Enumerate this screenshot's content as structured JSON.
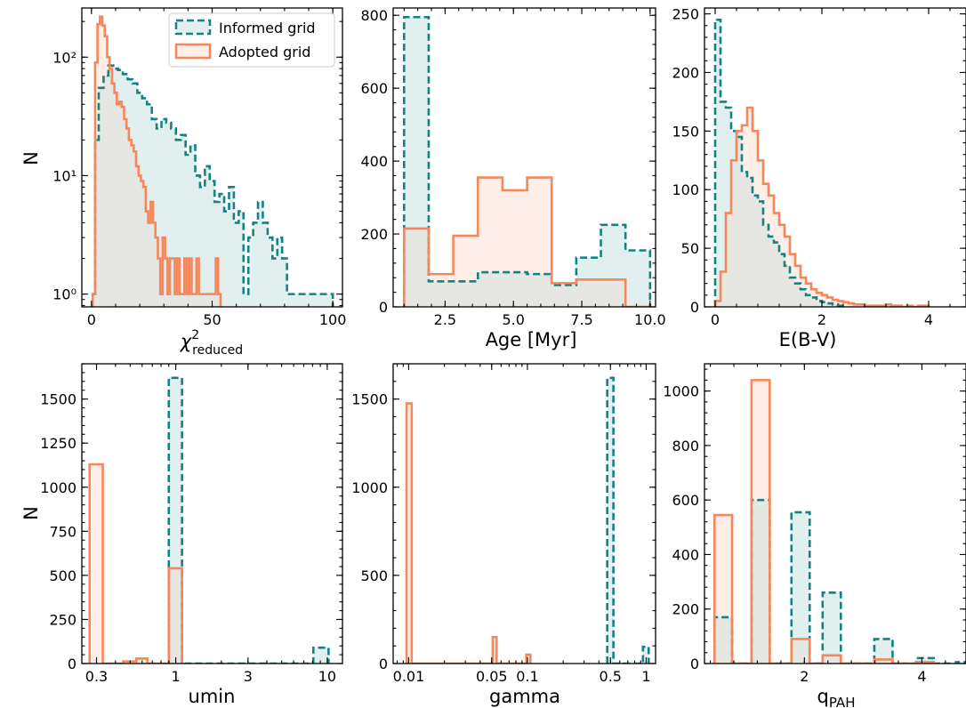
{
  "figure": {
    "legend": [
      {
        "name": "Informed grid",
        "color": "#138381",
        "dash": "dashed"
      },
      {
        "name": "Adopted grid",
        "color": "#f6875a",
        "dash": "solid"
      }
    ]
  },
  "colors": {
    "informed_line": "#138381",
    "informed_fill": "#e1f0ef",
    "adopted_line": "#f6875a",
    "adopted_fill": "#fdeee8",
    "overlap_fill": "#e6e6e2"
  },
  "chart_data": [
    {
      "type": "histogram",
      "panel": "chi2",
      "xlabel_main": "χ",
      "xlabel_sup": "2",
      "xlabel_sub": "reduced",
      "ylabel": "N",
      "yscale": "log",
      "xlim": [
        -4,
        104
      ],
      "ylim": [
        0.78,
        260
      ],
      "xticks": [
        0,
        50,
        100
      ],
      "xtick_labels": [
        "0",
        "50",
        "100"
      ],
      "yticks": [
        1,
        10,
        100
      ],
      "ytick_labels": [
        "10⁰",
        "10¹",
        "10²"
      ],
      "legend_position": "top-right",
      "series": [
        {
          "name": "Informed grid",
          "edges": [
            0.5,
            1.5,
            3,
            5,
            7,
            9,
            11,
            13,
            15,
            17,
            19,
            21,
            23,
            25,
            27,
            29,
            31,
            33,
            35,
            37,
            39,
            41,
            43,
            45,
            47,
            49,
            51,
            53,
            55,
            57,
            59,
            61,
            63,
            65,
            67,
            69,
            71,
            73,
            75,
            77,
            79,
            81,
            83,
            85,
            87,
            89,
            91,
            93,
            95,
            97,
            99,
            100
          ],
          "counts": [
            1,
            20,
            55,
            70,
            85,
            80,
            78,
            72,
            65,
            60,
            50,
            45,
            40,
            30,
            25,
            30,
            28,
            25,
            20,
            22,
            15,
            18,
            10,
            8,
            12,
            9,
            6,
            7,
            5,
            8,
            4,
            5,
            1,
            3,
            4,
            6,
            4,
            3,
            2,
            3,
            2,
            1,
            1,
            1,
            1,
            1,
            1,
            1,
            1,
            1,
            1
          ]
        },
        {
          "name": "Adopted grid",
          "edges": [
            0.5,
            1.5,
            2.5,
            3.5,
            4.5,
            5.5,
            6.5,
            7.5,
            8.5,
            9.5,
            10.5,
            11.5,
            12.5,
            13.5,
            14.5,
            15.5,
            16.5,
            17.5,
            18.5,
            19.5,
            20.5,
            21.5,
            22.5,
            23.5,
            24.5,
            25.5,
            26.5,
            27.5,
            28.5,
            29.5,
            30.5,
            31.5,
            32.5,
            33.5,
            34.5,
            35.5,
            36.5,
            37.5,
            38.5,
            39.5,
            40.5,
            41.5,
            42.5,
            43.5,
            44.5,
            45.5,
            46.5,
            47.5,
            48.5,
            49.5,
            50.5,
            51.5,
            52.5,
            53.5
          ],
          "counts": [
            1,
            90,
            190,
            220,
            185,
            150,
            100,
            80,
            60,
            50,
            40,
            42,
            38,
            30,
            25,
            20,
            18,
            16,
            12,
            10,
            9,
            8,
            5,
            4,
            6,
            4,
            3,
            2,
            1,
            3,
            2,
            1,
            2,
            2,
            1,
            2,
            1,
            1,
            2,
            1,
            2,
            1,
            1,
            2,
            1,
            1,
            1,
            1,
            1,
            1,
            1,
            2,
            1
          ]
        }
      ]
    },
    {
      "type": "histogram",
      "panel": "age",
      "xlabel": "Age [Myr]",
      "ylabel": "",
      "xlim": [
        0.6,
        10.2
      ],
      "ylim": [
        0,
        820
      ],
      "xticks": [
        2.5,
        5.0,
        7.5,
        10.0
      ],
      "xtick_labels": [
        "2.5",
        "5.0",
        "7.5",
        "10.0"
      ],
      "yticks": [
        0,
        200,
        400,
        600,
        800
      ],
      "ytick_labels": [
        "0",
        "200",
        "400",
        "600",
        "800"
      ],
      "series": [
        {
          "name": "Informed grid",
          "edges": [
            1.0,
            1.9,
            2.8,
            3.7,
            4.6,
            5.5,
            6.4,
            7.3,
            8.2,
            9.1,
            10.0
          ],
          "counts": [
            795,
            70,
            70,
            95,
            95,
            90,
            60,
            135,
            225,
            155
          ]
        },
        {
          "name": "Adopted grid",
          "edges": [
            1.0,
            1.9,
            2.8,
            3.7,
            4.6,
            5.5,
            6.4,
            7.3,
            8.2,
            9.1,
            10.0
          ],
          "counts": [
            215,
            90,
            195,
            355,
            320,
            355,
            65,
            75,
            75,
            0
          ]
        }
      ]
    },
    {
      "type": "histogram",
      "panel": "ebv",
      "xlabel": "E(B-V)",
      "ylabel": "",
      "xlim": [
        -0.2,
        4.7
      ],
      "ylim": [
        0,
        255
      ],
      "xticks": [
        0,
        2,
        4
      ],
      "xtick_labels": [
        "0",
        "2",
        "4"
      ],
      "yticks": [
        0,
        50,
        100,
        150,
        200,
        250
      ],
      "ytick_labels": [
        "0",
        "50",
        "100",
        "150",
        "200",
        "250"
      ],
      "series": [
        {
          "name": "Informed grid",
          "edges": [
            0.0,
            0.1,
            0.2,
            0.3,
            0.4,
            0.5,
            0.6,
            0.7,
            0.8,
            0.9,
            1.0,
            1.1,
            1.2,
            1.3,
            1.4,
            1.5,
            1.6,
            1.7,
            1.8,
            1.9,
            2.0,
            2.1,
            2.2,
            2.3,
            2.4
          ],
          "counts": [
            245,
            175,
            170,
            150,
            145,
            115,
            110,
            95,
            90,
            70,
            60,
            55,
            45,
            35,
            25,
            20,
            15,
            10,
            8,
            5,
            4,
            3,
            2,
            1
          ]
        },
        {
          "name": "Adopted grid",
          "edges": [
            0.0,
            0.1,
            0.2,
            0.3,
            0.4,
            0.5,
            0.6,
            0.7,
            0.8,
            0.9,
            1.0,
            1.1,
            1.2,
            1.3,
            1.4,
            1.5,
            1.6,
            1.7,
            1.8,
            1.9,
            2.0,
            2.1,
            2.2,
            2.3,
            2.4,
            2.5,
            2.6,
            2.7,
            2.8,
            2.9,
            3.0,
            3.1,
            3.2,
            3.3,
            3.4,
            3.5,
            3.6,
            3.7,
            3.8,
            3.9,
            4.0
          ],
          "counts": [
            5,
            30,
            80,
            125,
            150,
            155,
            170,
            150,
            125,
            105,
            95,
            80,
            70,
            60,
            45,
            35,
            25,
            20,
            15,
            12,
            10,
            8,
            6,
            5,
            4,
            3,
            2,
            2,
            1,
            1,
            1,
            1,
            2,
            1,
            1,
            0,
            1,
            0,
            1,
            1
          ]
        }
      ]
    },
    {
      "type": "histogram",
      "panel": "umin",
      "xlabel": "umin",
      "ylabel": "N",
      "xscale": "log",
      "xlim": [
        0.24,
        12.6
      ],
      "ylim": [
        0,
        1700
      ],
      "xticks": [
        0.3,
        1,
        3,
        10
      ],
      "xtick_labels": [
        "0.3",
        "1",
        "3",
        "10"
      ],
      "yticks": [
        0,
        250,
        500,
        750,
        1000,
        1250,
        1500
      ],
      "ytick_labels": [
        "0",
        "250",
        "500",
        "750",
        "1000",
        "1250",
        "1500"
      ],
      "series": [
        {
          "name": "Informed grid",
          "edges": [
            0.9,
            1.1,
            8.1,
            10.2
          ],
          "counts": [
            1620,
            0,
            90
          ]
        },
        {
          "name": "Adopted grid",
          "edges": [
            0.27,
            0.33,
            0.45,
            0.55,
            0.65,
            0.9,
            1.1
          ],
          "counts": [
            1130,
            0,
            12,
            28,
            0,
            540
          ]
        }
      ]
    },
    {
      "type": "histogram",
      "panel": "gamma",
      "xlabel": "gamma",
      "ylabel": "",
      "xscale": "log",
      "xlim": [
        0.0074,
        1.2
      ],
      "ylim": [
        0,
        1700
      ],
      "xticks": [
        0.01,
        0.05,
        0.1,
        0.5,
        1
      ],
      "xtick_labels": [
        "0.01",
        "0.05",
        "0.1",
        "0.5",
        "1"
      ],
      "yticks": [
        0,
        500,
        1000,
        1500
      ],
      "ytick_labels": [
        "0",
        "500",
        "1000",
        "1500"
      ],
      "series": [
        {
          "name": "Informed grid",
          "edges": [
            0.47,
            0.53,
            0.94,
            1.05
          ],
          "counts": [
            1620,
            0,
            95
          ]
        },
        {
          "name": "Adopted grid",
          "edges": [
            0.0096,
            0.0106,
            0.051,
            0.055,
            0.098,
            0.106
          ],
          "counts": [
            1475,
            0,
            150,
            0,
            50
          ]
        }
      ]
    },
    {
      "type": "histogram",
      "panel": "qpah",
      "xlabel_main": "q",
      "xlabel_sub": "PAH",
      "ylabel": "",
      "xlim": [
        0.3,
        4.75
      ],
      "ylim": [
        0,
        1100
      ],
      "xticks": [
        2,
        4
      ],
      "xtick_labels": [
        "2",
        "4"
      ],
      "yticks": [
        0,
        200,
        400,
        600,
        800,
        1000
      ],
      "ytick_labels": [
        "0",
        "200",
        "400",
        "600",
        "800",
        "1000"
      ],
      "series": [
        {
          "name": "Informed grid",
          "edges": [
            0.47,
            0.77,
            1.1,
            1.41,
            1.78,
            2.09,
            2.31,
            2.62,
            3.19,
            3.5,
            3.9,
            4.2,
            4.58,
            4.89
          ],
          "counts": [
            170,
            0,
            600,
            0,
            555,
            0,
            260,
            0,
            90,
            0,
            20,
            0,
            5
          ]
        },
        {
          "name": "Adopted grid",
          "edges": [
            0.47,
            0.77,
            1.1,
            1.41,
            1.78,
            2.09,
            2.31,
            2.62,
            3.19,
            3.5,
            3.9,
            4.2
          ],
          "counts": [
            545,
            0,
            1040,
            0,
            90,
            0,
            30,
            0,
            15,
            0,
            5
          ]
        }
      ]
    }
  ]
}
